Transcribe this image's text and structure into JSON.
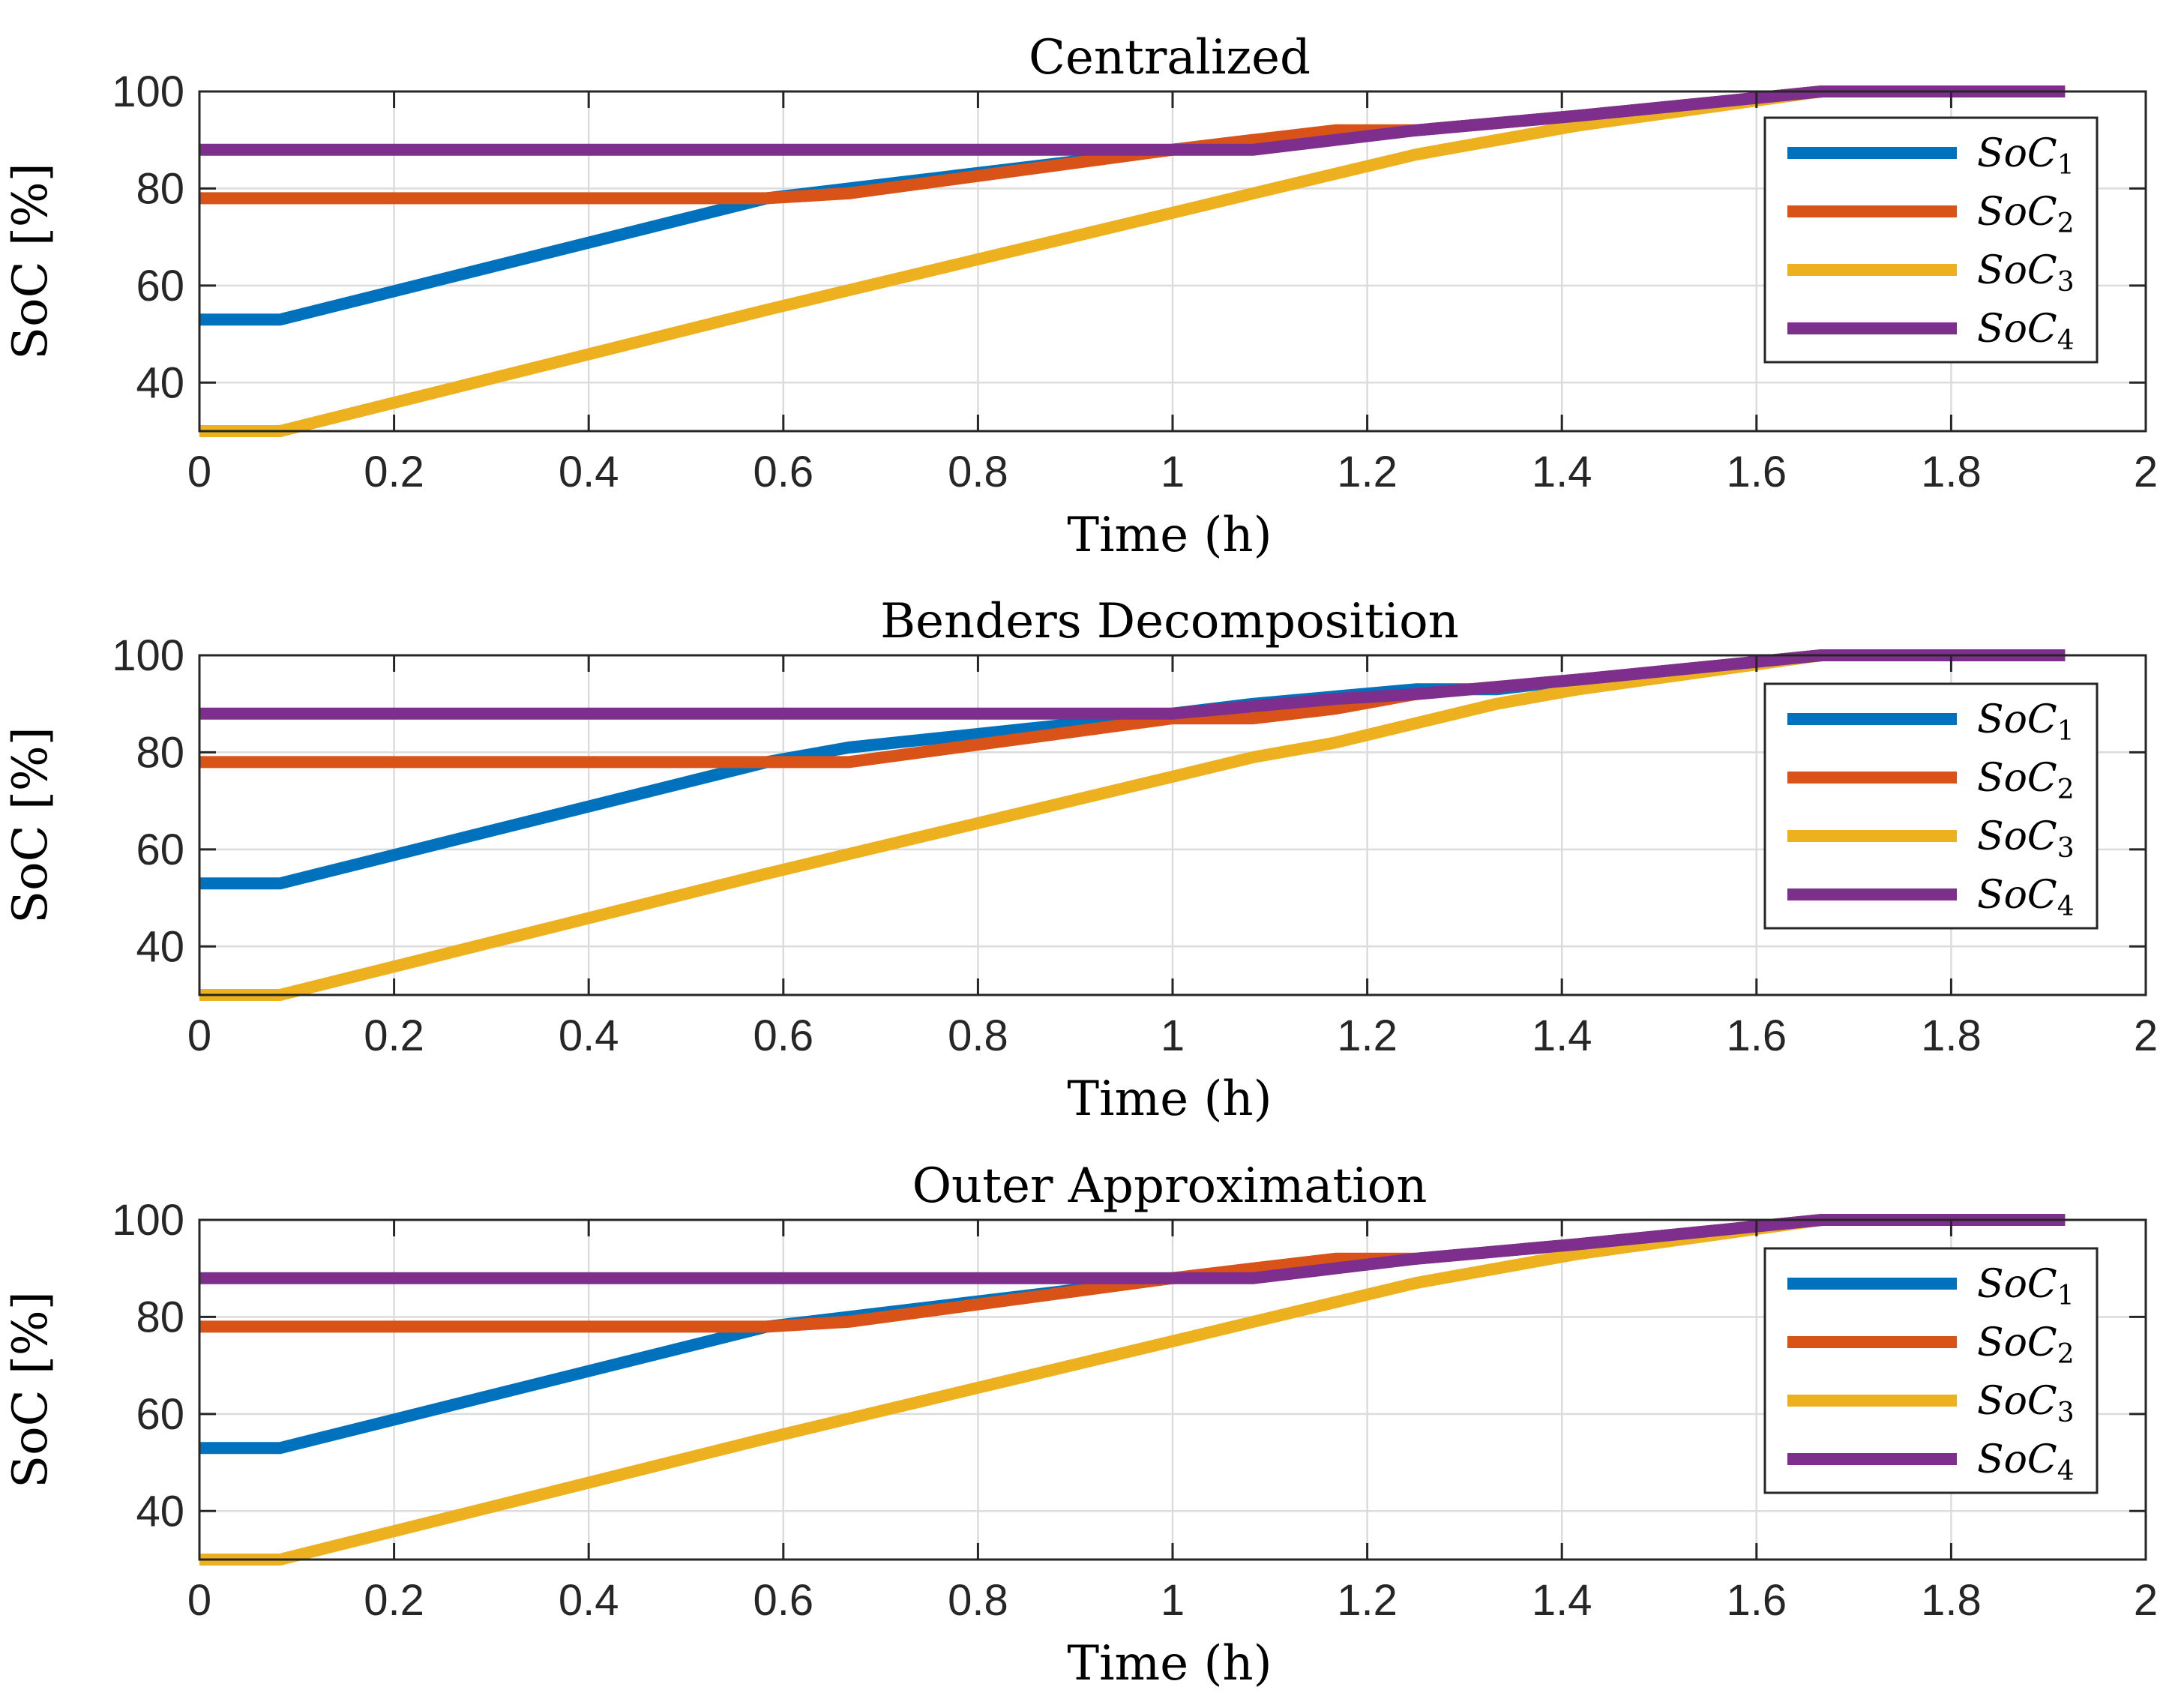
{
  "chart_data": [
    {
      "type": "line",
      "title": "Centralized",
      "xlabel": "Time (h)",
      "ylabel": "SoC [%]",
      "xlim": [
        0,
        2
      ],
      "ylim": [
        30,
        100
      ],
      "xticks": [
        "0",
        "0.2",
        "0.4",
        "0.6",
        "0.8",
        "1",
        "1.2",
        "1.4",
        "1.6",
        "1.8",
        "2"
      ],
      "yticks": [
        "40",
        "60",
        "80",
        "100"
      ],
      "grid": true,
      "legend_position": "top-right",
      "series": [
        {
          "name": "SoC",
          "sub": "1",
          "color": "#0072BD",
          "x": [
            0,
            0.083,
            0.583,
            0.667,
            1.0,
            1.083,
            1.25,
            1.417,
            1.667,
            1.917
          ],
          "y": [
            53,
            53,
            78,
            80,
            88,
            90,
            92,
            95,
            100,
            100
          ]
        },
        {
          "name": "SoC",
          "sub": "2",
          "color": "#D95319",
          "x": [
            0,
            0.583,
            0.667,
            1.0,
            1.083,
            1.167,
            1.25,
            1.417,
            1.667,
            1.917
          ],
          "y": [
            78,
            78,
            79,
            88,
            90,
            92,
            92,
            95,
            100,
            100
          ]
        },
        {
          "name": "SoC",
          "sub": "3",
          "color": "#EDB120",
          "x": [
            0,
            0.083,
            0.583,
            1.0,
            1.083,
            1.25,
            1.417,
            1.667,
            1.917
          ],
          "y": [
            30,
            30,
            55,
            75,
            79,
            87,
            93,
            100,
            100
          ]
        },
        {
          "name": "SoC",
          "sub": "4",
          "color": "#7E2F8E",
          "x": [
            0,
            1.083,
            1.167,
            1.25,
            1.417,
            1.667,
            1.917
          ],
          "y": [
            88,
            88,
            90,
            92,
            95,
            100,
            100
          ]
        }
      ]
    },
    {
      "type": "line",
      "title": "Benders Decomposition",
      "xlabel": "Time (h)",
      "ylabel": "SoC [%]",
      "xlim": [
        0,
        2
      ],
      "ylim": [
        30,
        100
      ],
      "xticks": [
        "0",
        "0.2",
        "0.4",
        "0.6",
        "0.8",
        "1",
        "1.2",
        "1.4",
        "1.6",
        "1.8",
        "2"
      ],
      "yticks": [
        "40",
        "60",
        "80",
        "100"
      ],
      "grid": true,
      "legend_position": "right",
      "series": [
        {
          "name": "SoC",
          "sub": "1",
          "color": "#0072BD",
          "x": [
            0,
            0.083,
            0.583,
            0.667,
            1.0,
            1.083,
            1.25,
            1.333,
            1.417,
            1.667,
            1.917
          ],
          "y": [
            53,
            53,
            78,
            81,
            88,
            90,
            93,
            93,
            95,
            100,
            100
          ]
        },
        {
          "name": "SoC",
          "sub": "2",
          "color": "#D95319",
          "x": [
            0,
            0.667,
            1.0,
            1.083,
            1.167,
            1.25,
            1.417,
            1.667,
            1.917
          ],
          "y": [
            78,
            78,
            87,
            87,
            89,
            92,
            95,
            100,
            100
          ]
        },
        {
          "name": "SoC",
          "sub": "3",
          "color": "#EDB120",
          "x": [
            0,
            0.083,
            0.583,
            1.0,
            1.083,
            1.167,
            1.333,
            1.417,
            1.667,
            1.917
          ],
          "y": [
            30,
            30,
            55,
            75,
            79,
            82,
            90,
            93,
            100,
            100
          ]
        },
        {
          "name": "SoC",
          "sub": "4",
          "color": "#7E2F8E",
          "x": [
            0,
            1.0,
            1.167,
            1.25,
            1.417,
            1.667,
            1.917
          ],
          "y": [
            88,
            88,
            91,
            92,
            95,
            100,
            100
          ]
        }
      ]
    },
    {
      "type": "line",
      "title": "Outer Approximation",
      "xlabel": "Time (h)",
      "ylabel": "SoC [%]",
      "xlim": [
        0,
        2
      ],
      "ylim": [
        30,
        100
      ],
      "xticks": [
        "0",
        "0.2",
        "0.4",
        "0.6",
        "0.8",
        "1",
        "1.2",
        "1.4",
        "1.6",
        "1.8",
        "2"
      ],
      "yticks": [
        "40",
        "60",
        "80",
        "100"
      ],
      "grid": true,
      "legend_position": "right",
      "series": [
        {
          "name": "SoC",
          "sub": "1",
          "color": "#0072BD",
          "x": [
            0,
            0.083,
            0.583,
            0.667,
            1.0,
            1.083,
            1.25,
            1.417,
            1.667,
            1.917
          ],
          "y": [
            53,
            53,
            78,
            80,
            88,
            89,
            92,
            95,
            100,
            100
          ]
        },
        {
          "name": "SoC",
          "sub": "2",
          "color": "#D95319",
          "x": [
            0,
            0.583,
            0.667,
            1.0,
            1.083,
            1.167,
            1.25,
            1.417,
            1.667,
            1.917
          ],
          "y": [
            78,
            78,
            79,
            88,
            90,
            92,
            92,
            95,
            100,
            100
          ]
        },
        {
          "name": "SoC",
          "sub": "3",
          "color": "#EDB120",
          "x": [
            0,
            0.083,
            0.583,
            1.0,
            1.083,
            1.25,
            1.417,
            1.667,
            1.917
          ],
          "y": [
            30,
            30,
            55,
            75,
            79,
            87,
            93,
            100,
            100
          ]
        },
        {
          "name": "SoC",
          "sub": "4",
          "color": "#7E2F8E",
          "x": [
            0,
            1.083,
            1.167,
            1.25,
            1.417,
            1.667,
            1.917
          ],
          "y": [
            88,
            88,
            90,
            92,
            95,
            100,
            100
          ]
        }
      ]
    }
  ]
}
